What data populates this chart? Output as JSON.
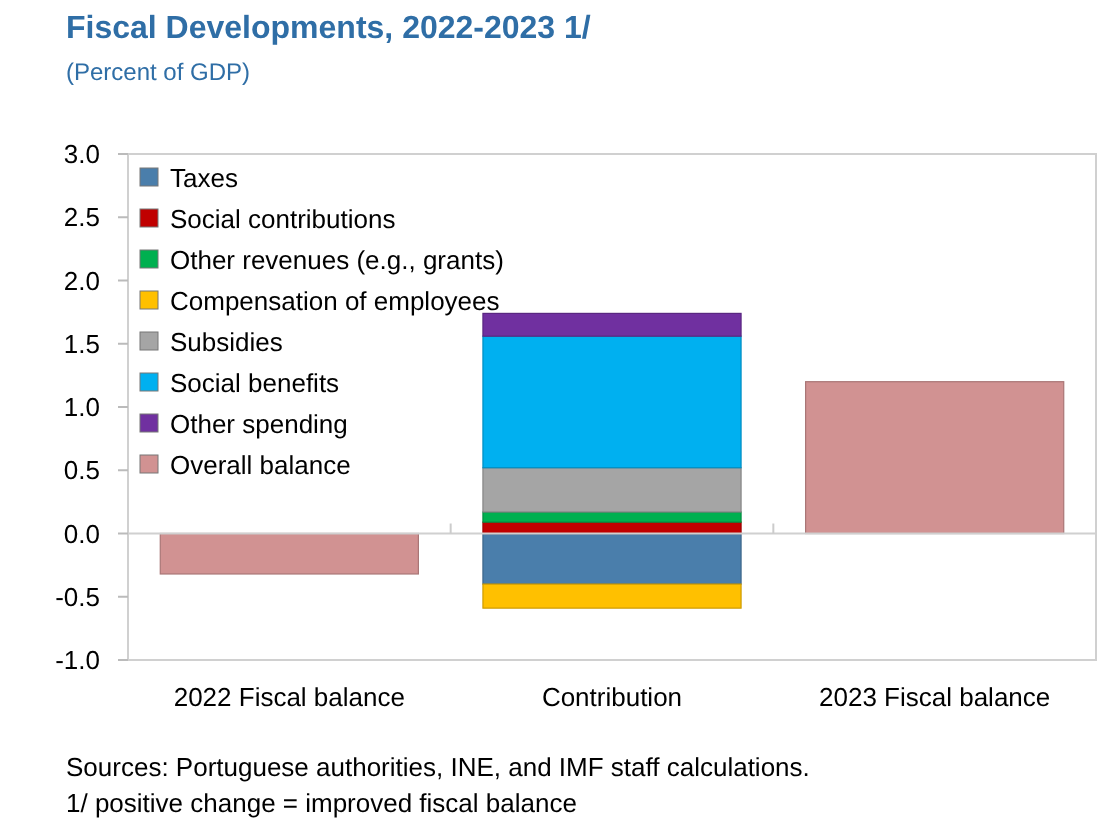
{
  "chart_data": {
    "type": "bar",
    "title": "Fiscal Developments, 2022-2023 1/",
    "subtitle": "(Percent of GDP)",
    "categories": [
      "2022 Fiscal balance",
      "Contribution",
      "2023 Fiscal balance"
    ],
    "stacked": true,
    "series": [
      {
        "name": "Taxes",
        "color": "#4a7eab",
        "values": [
          null,
          -0.4,
          null
        ]
      },
      {
        "name": "Social contributions",
        "color": "#c00000",
        "values": [
          null,
          0.09,
          null
        ]
      },
      {
        "name": "Other revenues (e.g., grants)",
        "color": "#00b050",
        "values": [
          null,
          0.08,
          null
        ]
      },
      {
        "name": "Compensation of employees",
        "color": "#ffc000",
        "values": [
          null,
          -0.19,
          null
        ]
      },
      {
        "name": "Subsidies",
        "color": "#a5a5a5",
        "values": [
          null,
          0.35,
          null
        ]
      },
      {
        "name": "Social benefits",
        "color": "#00b0f0",
        "values": [
          null,
          1.04,
          null
        ]
      },
      {
        "name": "Other spending",
        "color": "#7030a0",
        "values": [
          null,
          0.18,
          null
        ]
      },
      {
        "name": "Overall balance",
        "color": "#d19292",
        "values": [
          -0.32,
          null,
          1.2
        ]
      }
    ],
    "ylim": [
      -1,
      3
    ],
    "yticks": [
      {
        "value": -1,
        "label": "-1.0"
      },
      {
        "value": -0.5,
        "label": "-0.5"
      },
      {
        "value": 0,
        "label": "0.0"
      },
      {
        "value": 0.5,
        "label": "0.5"
      },
      {
        "value": 1,
        "label": "1.0"
      },
      {
        "value": 1.5,
        "label": "1.5"
      },
      {
        "value": 2,
        "label": "2.0"
      },
      {
        "value": 2.5,
        "label": "2.5"
      },
      {
        "value": 3,
        "label": "3.0"
      }
    ],
    "legend": "top left",
    "annotations": [
      "Sources: Portuguese authorities, INE, and IMF staff calculations.",
      "1/ positive change = improved fiscal balance"
    ]
  }
}
